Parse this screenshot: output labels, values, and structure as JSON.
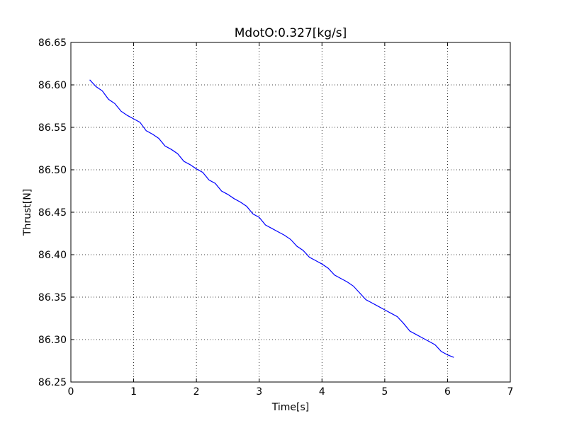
{
  "chart_data": {
    "type": "line",
    "title": "MdotO:0.327[kg/s]",
    "xlabel": "Time[s]",
    "ylabel": "Thrust[N]",
    "xlim": [
      0,
      7
    ],
    "ylim": [
      86.25,
      86.65
    ],
    "xticks": [
      0,
      1,
      2,
      3,
      4,
      5,
      6,
      7
    ],
    "xtick_labels": [
      "0",
      "1",
      "2",
      "3",
      "4",
      "5",
      "6",
      "7"
    ],
    "yticks": [
      86.25,
      86.3,
      86.35,
      86.4,
      86.45,
      86.5,
      86.55,
      86.6,
      86.65
    ],
    "ytick_labels": [
      "86.25",
      "86.30",
      "86.35",
      "86.40",
      "86.45",
      "86.50",
      "86.55",
      "86.60",
      "86.65"
    ],
    "grid": true,
    "series": [
      {
        "color": "#0000ff",
        "x": [
          0.3,
          0.4,
          0.5,
          0.6,
          0.7,
          0.8,
          0.9,
          1.0,
          1.1,
          1.2,
          1.3,
          1.4,
          1.5,
          1.6,
          1.7,
          1.8,
          1.9,
          2.0,
          2.1,
          2.2,
          2.3,
          2.4,
          2.5,
          2.6,
          2.7,
          2.8,
          2.9,
          3.0,
          3.1,
          3.2,
          3.3,
          3.4,
          3.5,
          3.6,
          3.7,
          3.8,
          3.9,
          4.0,
          4.1,
          4.2,
          4.3,
          4.4,
          4.5,
          4.6,
          4.7,
          4.8,
          4.9,
          5.0,
          5.1,
          5.2,
          5.3,
          5.4,
          5.5,
          5.6,
          5.7,
          5.8,
          5.9,
          6.0,
          6.1
        ],
        "y": [
          86.606,
          86.598,
          86.593,
          86.583,
          86.578,
          86.569,
          86.564,
          86.56,
          86.556,
          86.546,
          86.542,
          86.537,
          86.528,
          86.524,
          86.519,
          86.51,
          86.506,
          86.501,
          86.497,
          86.488,
          86.484,
          86.475,
          86.471,
          86.466,
          86.462,
          86.457,
          86.448,
          86.444,
          86.435,
          86.431,
          86.427,
          86.423,
          86.418,
          86.41,
          86.405,
          86.397,
          86.393,
          86.389,
          86.384,
          86.376,
          86.372,
          86.368,
          86.363,
          86.355,
          86.347,
          86.343,
          86.339,
          86.335,
          86.331,
          86.327,
          86.319,
          86.31,
          86.306,
          86.302,
          86.298,
          86.294,
          86.286,
          86.282,
          86.279
        ]
      }
    ]
  }
}
